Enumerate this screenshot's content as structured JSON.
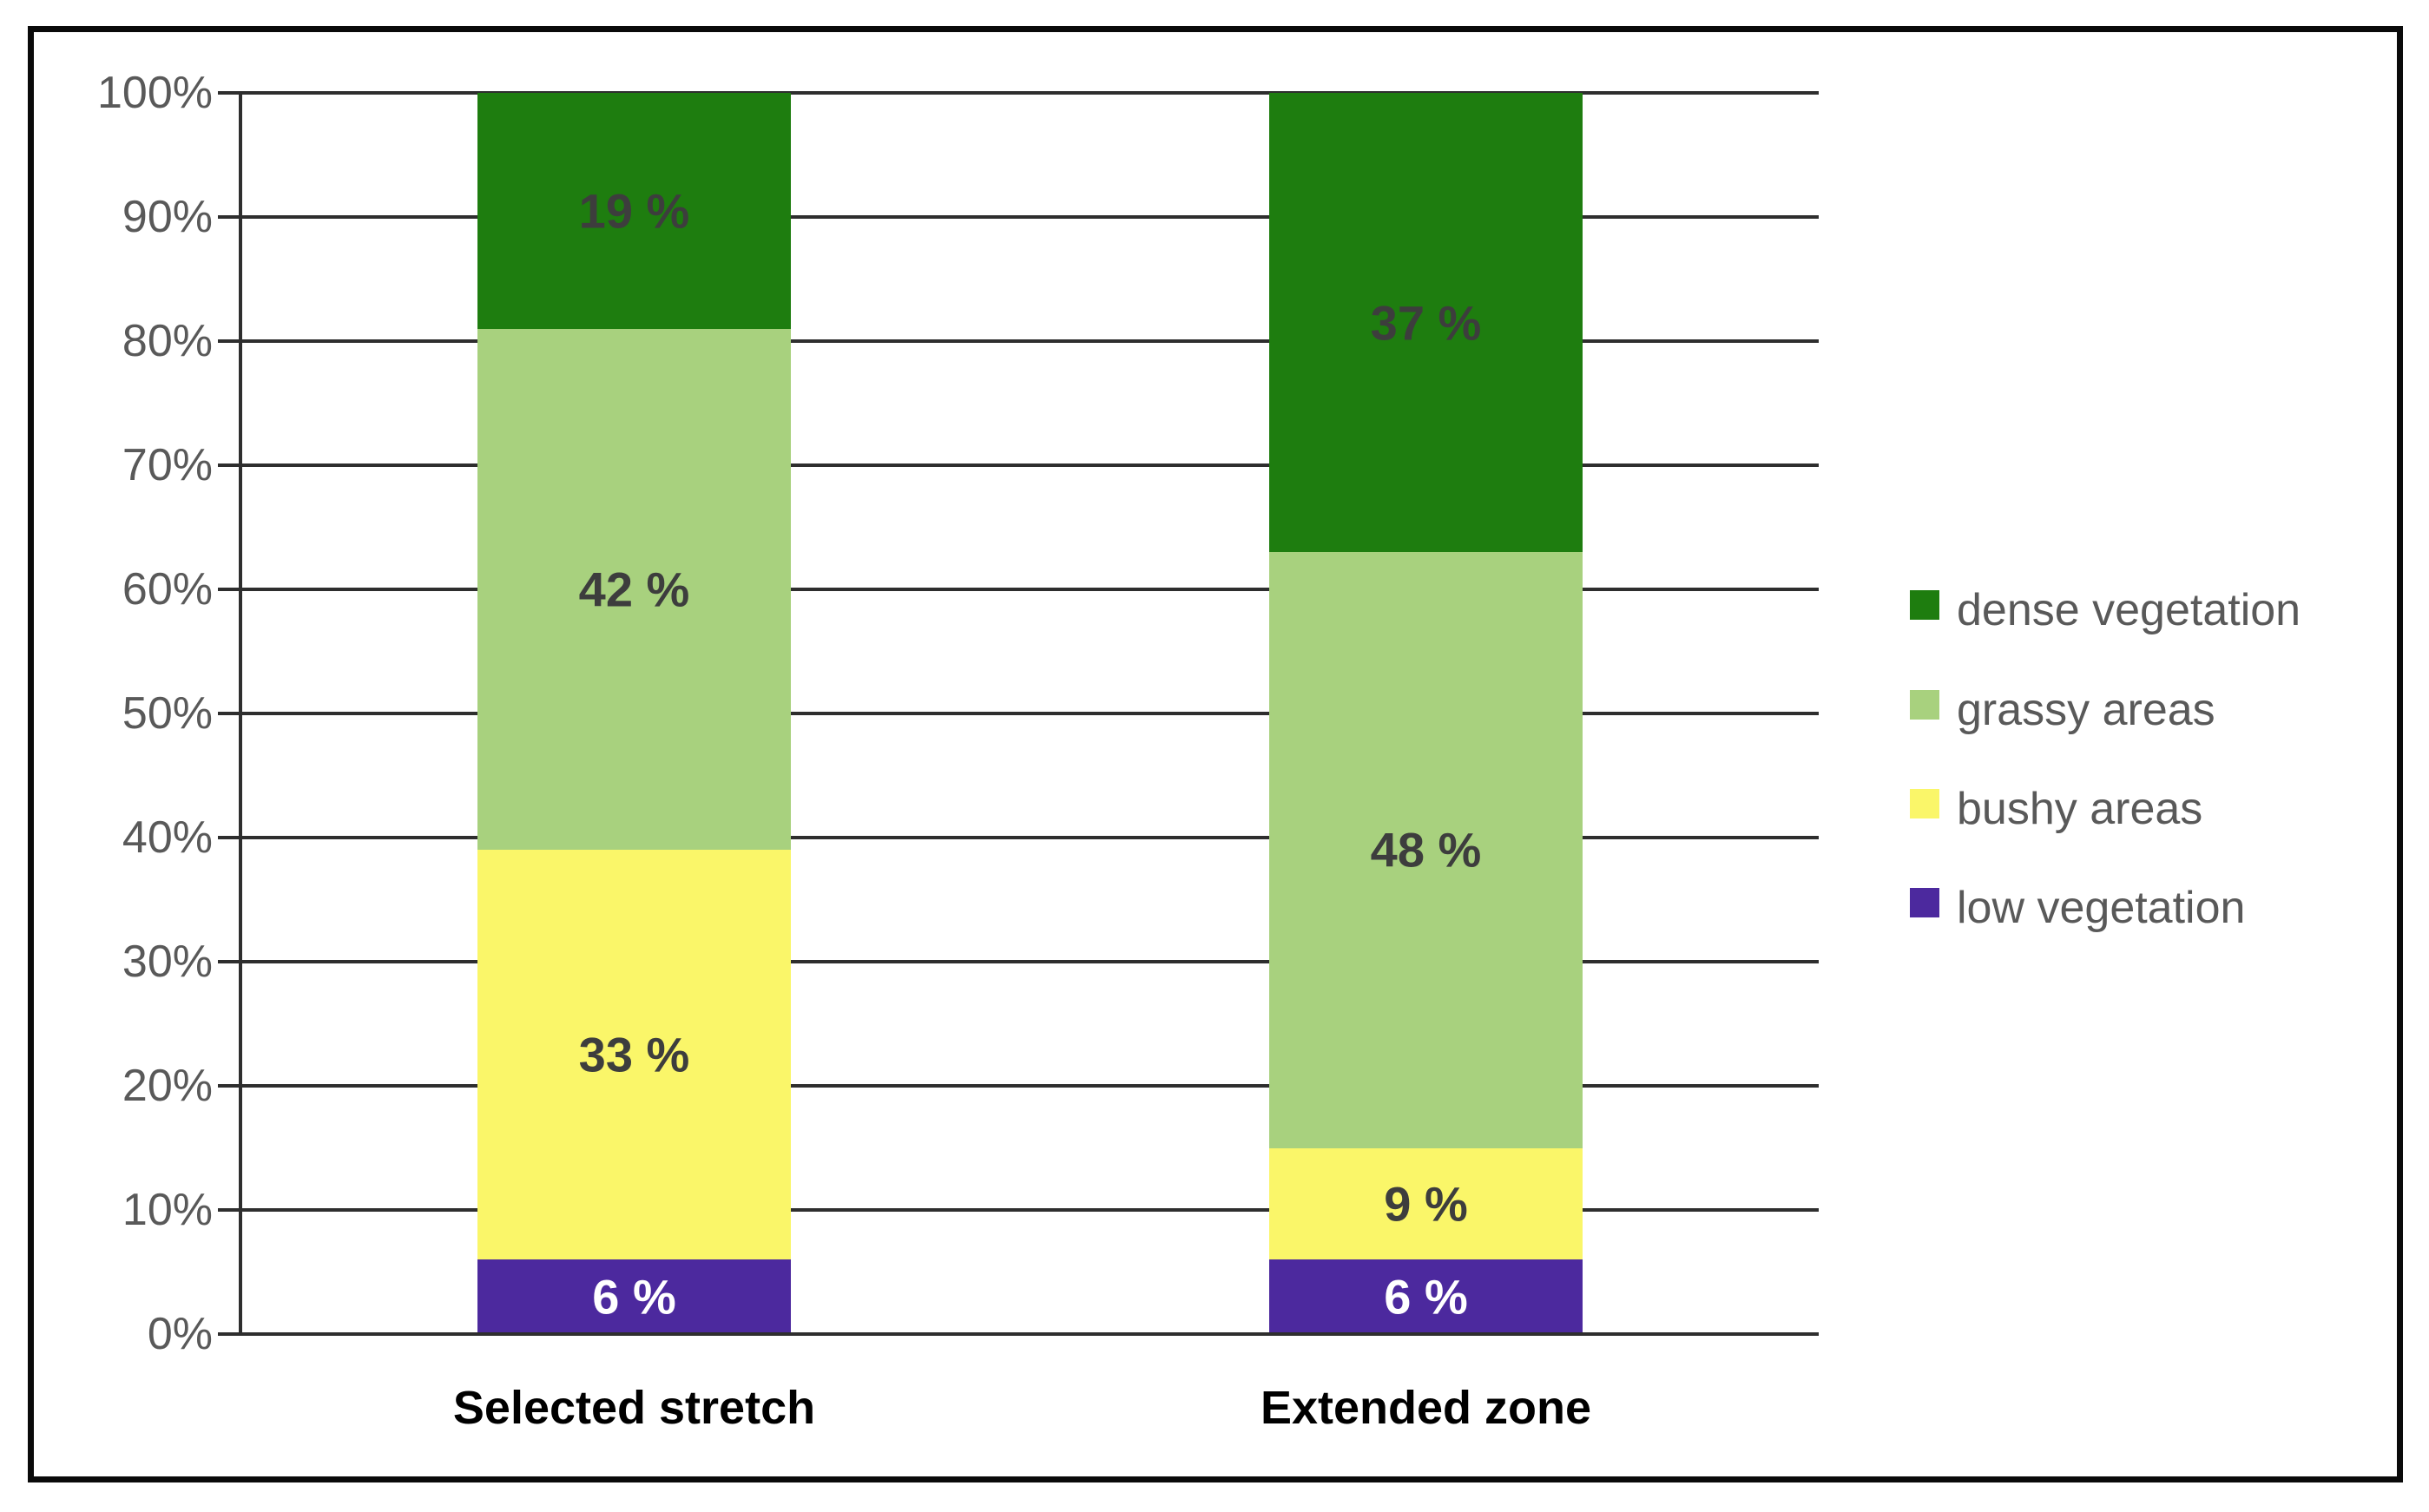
{
  "chart_data": {
    "type": "bar",
    "stacked": true,
    "stack_unit": "percent",
    "title": "",
    "xlabel": "",
    "ylabel": "",
    "categories": [
      "Selected stretch",
      "Extended zone"
    ],
    "series": [
      {
        "name": "low vegetation",
        "color": "#4C299E",
        "label_color": "#FFFFFF",
        "values": [
          6,
          6
        ]
      },
      {
        "name": "bushy areas",
        "color": "#FAF669",
        "label_color": "#3D3D3D",
        "values": [
          33,
          9
        ]
      },
      {
        "name": "grassy areas",
        "color": "#A8D17E",
        "label_color": "#3D3D3D",
        "values": [
          42,
          48
        ]
      },
      {
        "name": "dense vegetation",
        "color": "#1E7D0F",
        "label_color": "#3D3D3D",
        "values": [
          19,
          37
        ]
      }
    ],
    "data_labels": {
      "suffix": " %",
      "by_category": [
        {
          "category": "Selected stretch",
          "labels": [
            "6 %",
            "33 %",
            "42 %",
            "19 %"
          ]
        },
        {
          "category": "Extended zone",
          "labels": [
            "6 %",
            "9 %",
            "48 %",
            "37 %"
          ]
        }
      ]
    },
    "y_axis": {
      "min": 0,
      "max": 100,
      "tick_labels": [
        "0%",
        "10%",
        "20%",
        "30%",
        "40%",
        "50%",
        "60%",
        "70%",
        "80%",
        "90%",
        "100%"
      ]
    },
    "grid": true,
    "legend_position": "right",
    "legend_order": [
      "dense vegetation",
      "grassy areas",
      "bushy areas",
      "low vegetation"
    ]
  },
  "colors": {
    "background": "#FFFFFF",
    "frame_border": "#0A0A0A",
    "grid": "#2E2E2E",
    "axis": "#2E2E2E",
    "tick_label": "#595959",
    "legend_label": "#595959",
    "category_label": "#000000"
  }
}
